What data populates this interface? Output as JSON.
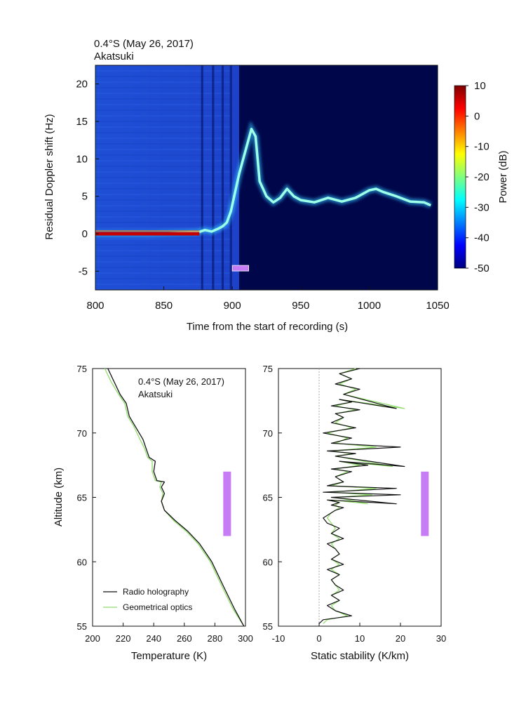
{
  "chart_data": [
    {
      "type": "heatmap",
      "title_line1": "0.4°S (May 26, 2017)",
      "title_line2": "Akatsuki",
      "xlabel": "Time from the start of recording (s)",
      "ylabel": "Residual Doppler shift (Hz)",
      "xlim": [
        800,
        1050
      ],
      "ylim": [
        -7.5,
        22.5
      ],
      "xticks": [
        800,
        850,
        900,
        950,
        1000,
        1050
      ],
      "yticks": [
        -5,
        0,
        5,
        10,
        15,
        20
      ],
      "colorbar": {
        "label": "Power (dB)",
        "range": [
          -50,
          10
        ],
        "ticks": [
          10,
          0,
          -10,
          -20,
          -30,
          -40,
          -50
        ]
      },
      "signal_trace": {
        "x": [
          800,
          840,
          875,
          880,
          885,
          890,
          893,
          896,
          899,
          902,
          905,
          908,
          911,
          914,
          917,
          920,
          925,
          930,
          935,
          940,
          945,
          950,
          960,
          970,
          980,
          990,
          1000,
          1005,
          1010,
          1020,
          1030,
          1040,
          1045
        ],
        "y": [
          0,
          0,
          0.2,
          0.5,
          0.3,
          0.7,
          1,
          1.5,
          3,
          5.5,
          8,
          10,
          12,
          14,
          13,
          7,
          5,
          4.2,
          4.8,
          6,
          5,
          4.5,
          4.2,
          4.8,
          4.3,
          4.8,
          5.8,
          6,
          5.6,
          5,
          4.3,
          4.2,
          3.8
        ]
      },
      "marker_bar": {
        "x": [
          900,
          912
        ],
        "y": -4.6,
        "color": "#c57cf5"
      }
    },
    {
      "type": "line",
      "title_line1": "0.4°S (May 26, 2017)",
      "title_line2": "Akatsuki",
      "xlabel": "Temperature (K)",
      "ylabel": "Altitude (km)",
      "xlim": [
        200,
        300
      ],
      "ylim": [
        55,
        75
      ],
      "xticks": [
        200,
        220,
        240,
        260,
        280,
        300
      ],
      "yticks": [
        55,
        60,
        65,
        70,
        75
      ],
      "legend": "bottom-left",
      "series": [
        {
          "name": "Radio holography",
          "color": "#111111",
          "x": [
            299,
            293,
            286,
            278,
            270,
            262,
            254,
            247,
            245,
            247,
            245,
            247,
            242,
            240,
            241,
            237,
            235,
            233,
            228,
            224,
            222,
            218,
            214,
            210
          ],
          "y": [
            55,
            56.3,
            58,
            60,
            61.4,
            62.4,
            63.2,
            64,
            64.7,
            65.3,
            65.8,
            66.2,
            66.3,
            67,
            67.8,
            68.1,
            68.8,
            69.5,
            70.5,
            71.3,
            72.3,
            73,
            74,
            75
          ]
        },
        {
          "name": "Geometrical optics",
          "color": "#8fdc6a",
          "x": [
            299,
            292,
            285,
            277,
            269,
            261,
            253,
            247,
            245,
            246,
            244,
            245,
            241,
            239,
            239,
            236,
            234,
            231,
            227,
            223,
            221,
            217,
            212,
            208
          ],
          "y": [
            55,
            56.3,
            58,
            60,
            61.4,
            62.4,
            63.2,
            64,
            64.7,
            65.3,
            65.8,
            66.2,
            66.3,
            67,
            67.8,
            68.1,
            68.8,
            69.5,
            70.5,
            71.3,
            72.3,
            73,
            74,
            75
          ]
        }
      ],
      "marker_bar": {
        "x": 288,
        "y": [
          62,
          67
        ],
        "color": "#c57cf5"
      }
    },
    {
      "type": "line",
      "xlabel": "Static stability (K/km)",
      "ylabel": "",
      "xlim": [
        -10,
        30
      ],
      "ylim": [
        55,
        75
      ],
      "xticks": [
        -10,
        0,
        10,
        20,
        30
      ],
      "yticks": [
        55,
        60,
        65,
        70,
        75
      ],
      "series": [
        {
          "name": "Radio holography",
          "color": "#111111",
          "x": [
            0,
            1,
            8,
            4,
            2,
            5,
            3,
            6,
            4,
            3,
            5,
            2,
            6,
            3,
            5,
            4,
            2,
            6,
            3,
            5,
            2,
            1,
            3,
            4,
            6,
            3,
            5,
            2,
            19,
            3,
            20,
            1,
            19,
            2,
            6,
            4,
            8,
            3,
            12,
            5,
            21,
            4,
            9,
            2,
            20,
            3,
            8,
            1,
            9,
            3,
            6,
            4,
            10,
            3,
            8,
            5,
            19,
            6,
            10,
            4,
            8,
            5,
            10
          ],
          "y": [
            55.2,
            55.5,
            55.8,
            56.2,
            56.6,
            57,
            57.4,
            57.8,
            58.2,
            58.6,
            59,
            59.4,
            59.8,
            60.2,
            60.6,
            61,
            61.4,
            61.8,
            62.2,
            62.6,
            63,
            63.4,
            63.8,
            64,
            64.2,
            64.4,
            64.6,
            64.8,
            64.5,
            65,
            65.2,
            65.4,
            65.7,
            65.9,
            66.2,
            66.6,
            67,
            67.2,
            67.5,
            67.8,
            67.4,
            68.2,
            68.4,
            68.6,
            68.9,
            69.2,
            69.6,
            70,
            70.4,
            70.8,
            71.2,
            71.5,
            71.8,
            72.1,
            72.4,
            72.6,
            71.9,
            73,
            73.4,
            73.8,
            74.2,
            74.6,
            75
          ]
        },
        {
          "name": "Geometrical optics",
          "color": "#8fdc6a",
          "x": [
            1,
            2,
            7,
            4,
            3,
            5,
            3,
            5,
            4,
            3,
            5,
            3,
            5,
            3,
            5,
            4,
            3,
            5,
            3,
            4,
            3,
            2,
            3,
            4,
            5,
            4,
            5,
            3,
            12,
            4,
            13,
            3,
            14,
            3,
            6,
            4,
            7,
            4,
            10,
            5,
            18,
            4,
            8,
            3,
            14,
            4,
            7,
            2,
            8,
            4,
            6,
            4,
            9,
            4,
            8,
            5,
            21,
            6,
            9,
            5,
            8,
            5,
            9
          ],
          "y": [
            55.2,
            55.5,
            55.8,
            56.2,
            56.6,
            57,
            57.4,
            57.8,
            58.2,
            58.6,
            59,
            59.4,
            59.8,
            60.2,
            60.6,
            61,
            61.4,
            61.8,
            62.2,
            62.6,
            63,
            63.4,
            63.8,
            64,
            64.2,
            64.4,
            64.6,
            64.8,
            64.5,
            65,
            65.2,
            65.4,
            65.7,
            65.9,
            66.2,
            66.6,
            67,
            67.2,
            67.5,
            67.8,
            67.4,
            68.2,
            68.4,
            68.6,
            68.9,
            69.2,
            69.6,
            70,
            70.4,
            70.8,
            71.2,
            71.5,
            71.8,
            72.1,
            72.4,
            72.6,
            71.9,
            73,
            73.4,
            73.8,
            74.2,
            74.6,
            75
          ]
        }
      ],
      "marker_bar": {
        "x": 26,
        "y": [
          62,
          67
        ],
        "color": "#c57cf5"
      }
    }
  ]
}
